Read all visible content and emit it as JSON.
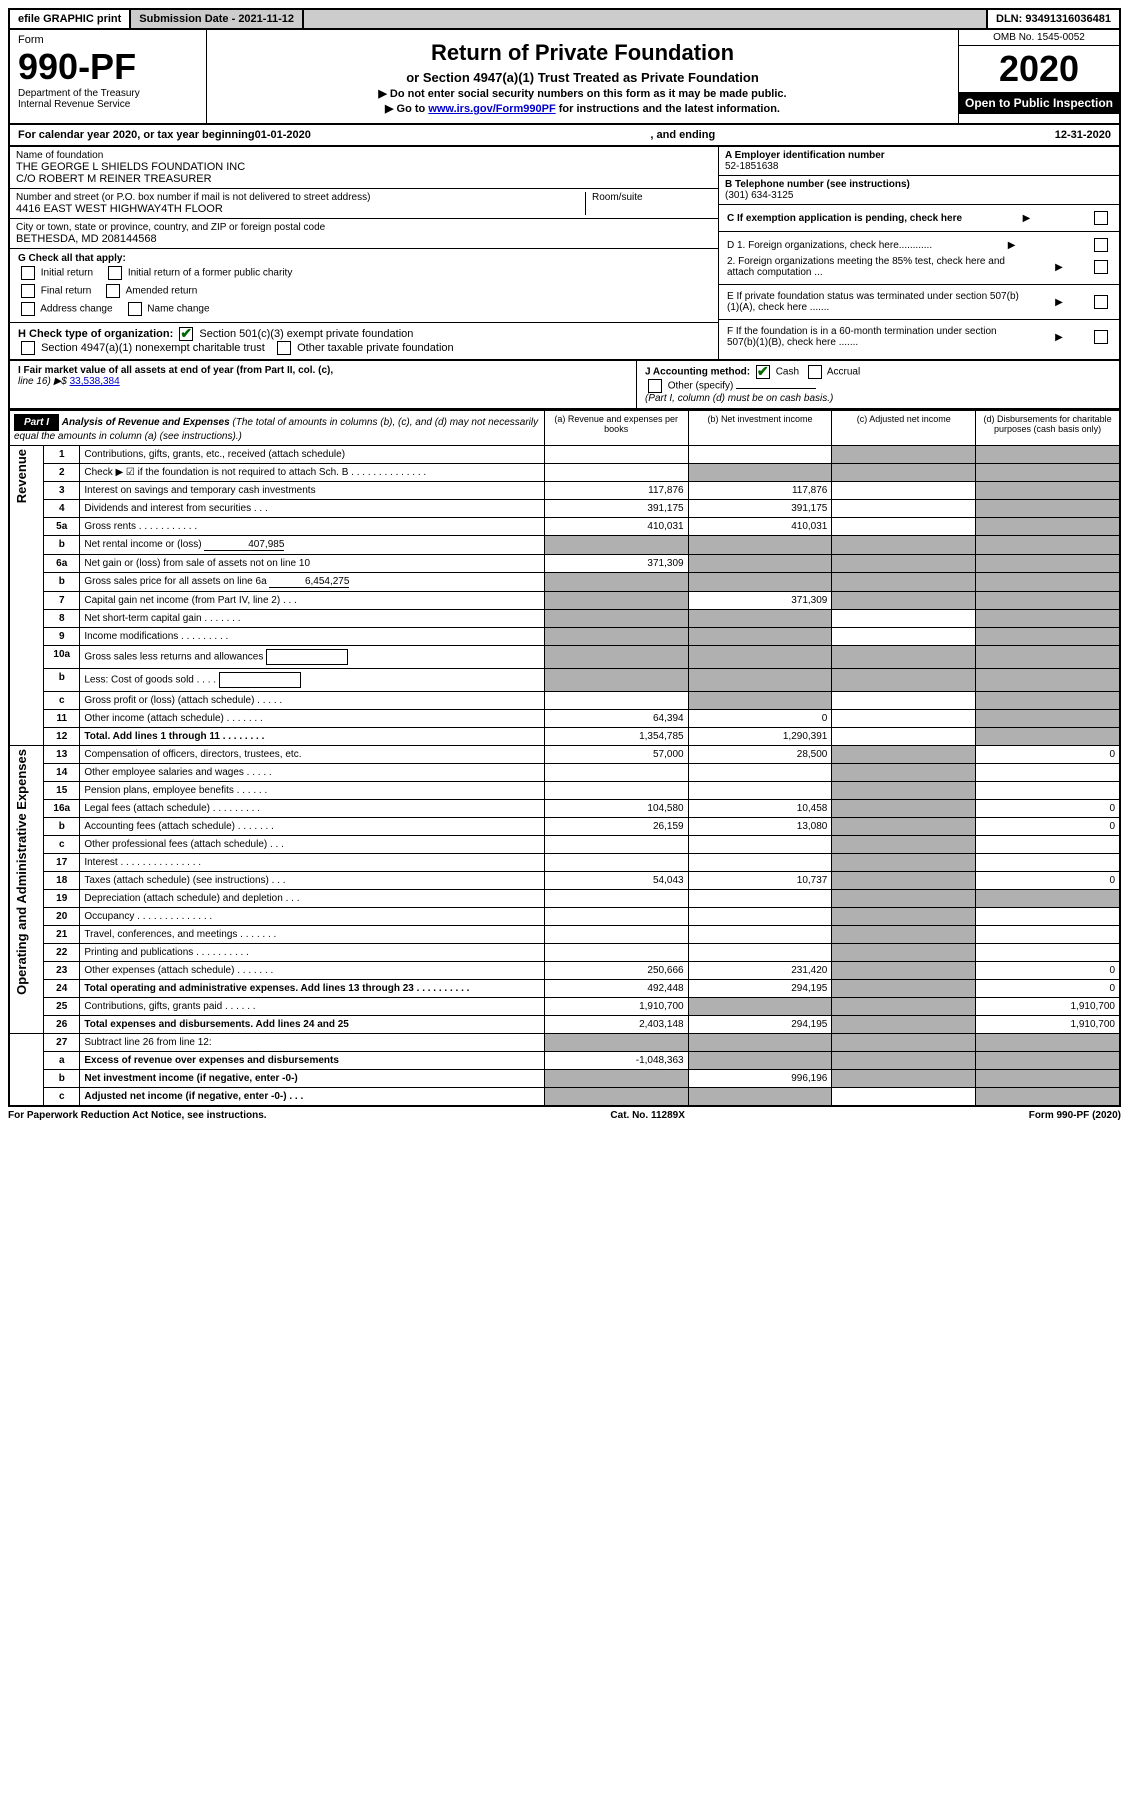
{
  "top_bar": {
    "efile": "efile GRAPHIC print",
    "submission": "Submission Date - 2021-11-12",
    "dln": "DLN: 93491316036481"
  },
  "header": {
    "form_label": "Form",
    "form_number": "990-PF",
    "dept": "Department of the Treasury",
    "irs": "Internal Revenue Service",
    "title": "Return of Private Foundation",
    "subtitle": "or Section 4947(a)(1) Trust Treated as Private Foundation",
    "note1": "▶ Do not enter social security numbers on this form as it may be made public.",
    "note2_prefix": "▶ Go to ",
    "note2_link": "www.irs.gov/Form990PF",
    "note2_suffix": " for instructions and the latest information.",
    "omb": "OMB No. 1545-0052",
    "year": "2020",
    "open": "Open to Public Inspection"
  },
  "calendar": {
    "prefix": "For calendar year 2020, or tax year beginning ",
    "begin": "01-01-2020",
    "mid": " , and ending ",
    "end": "12-31-2020"
  },
  "entity": {
    "name_label": "Name of foundation",
    "name1": "THE GEORGE L SHIELDS FOUNDATION INC",
    "name2": "C/O ROBERT M REINER TREASURER",
    "addr_label": "Number and street (or P.O. box number if mail is not delivered to street address)",
    "addr": "4416 EAST WEST HIGHWAY4TH FLOOR",
    "room_label": "Room/suite",
    "city_label": "City or town, state or province, country, and ZIP or foreign postal code",
    "city": "BETHESDA, MD  208144568",
    "ein_label": "A Employer identification number",
    "ein": "52-1851638",
    "phone_label": "B Telephone number (see instructions)",
    "phone": "(301) 634-3125",
    "c_label": "C If exemption application is pending, check here",
    "d1_label": "D 1. Foreign organizations, check here............",
    "d2_label": "2. Foreign organizations meeting the 85% test, check here and attach computation ...",
    "e_label": "E If private foundation status was terminated under section 507(b)(1)(A), check here .......",
    "f_label": "F If the foundation is in a 60-month termination under section 507(b)(1)(B), check here .......",
    "g_label": "G Check all that apply:",
    "g_opts": [
      "Initial return",
      "Initial return of a former public charity",
      "Final return",
      "Amended return",
      "Address change",
      "Name change"
    ],
    "h_label": "H Check type of organization:",
    "h_opt1": "Section 501(c)(3) exempt private foundation",
    "h_opt2": "Section 4947(a)(1) nonexempt charitable trust",
    "h_opt3": "Other taxable private foundation",
    "i_label": "I Fair market value of all assets at end of year (from Part II, col. (c),",
    "i_line": "line 16) ▶$",
    "i_value": "33,538,384",
    "j_label": "J Accounting method:",
    "j_cash": "Cash",
    "j_accrual": "Accrual",
    "j_other": "Other (specify)",
    "j_note": "(Part I, column (d) must be on cash basis.)"
  },
  "part1": {
    "label": "Part I",
    "title": "Analysis of Revenue and Expenses",
    "title_note": "(The total of amounts in columns (b), (c), and (d) may not necessarily equal the amounts in column (a) (see instructions).)",
    "col_a": "(a) Revenue and expenses per books",
    "col_b": "(b) Net investment income",
    "col_c": "(c) Adjusted net income",
    "col_d": "(d) Disbursements for charitable purposes (cash basis only)",
    "revenue_label": "Revenue",
    "expenses_label": "Operating and Administrative Expenses"
  },
  "rows": [
    {
      "n": "1",
      "d": "Contributions, gifts, grants, etc., received (attach schedule)",
      "a": "",
      "b": "",
      "c": "s",
      "dcol": "s"
    },
    {
      "n": "2",
      "d": "Check ▶ ☑ if the foundation is not required to attach Sch. B       .   .   .   .   .   .   .   .   .   .   .   .   .   .",
      "a": "",
      "b": "s",
      "c": "s",
      "dcol": "s"
    },
    {
      "n": "3",
      "d": "Interest on savings and temporary cash investments",
      "a": "117,876",
      "b": "117,876",
      "c": "",
      "dcol": "s"
    },
    {
      "n": "4",
      "d": "Dividends and interest from securities     .   .   .",
      "a": "391,175",
      "b": "391,175",
      "c": "",
      "dcol": "s"
    },
    {
      "n": "5a",
      "d": "Gross rents       .   .   .   .   .   .   .   .   .   .   .",
      "a": "410,031",
      "b": "410,031",
      "c": "",
      "dcol": "s"
    },
    {
      "n": "b",
      "d": "Net rental income or (loss)",
      "inline": "407,985",
      "a": "s",
      "b": "s",
      "c": "s",
      "dcol": "s"
    },
    {
      "n": "6a",
      "d": "Net gain or (loss) from sale of assets not on line 10",
      "a": "371,309",
      "b": "s",
      "c": "s",
      "dcol": "s"
    },
    {
      "n": "b",
      "d": "Gross sales price for all assets on line 6a",
      "inline": "6,454,275",
      "a": "s",
      "b": "s",
      "c": "s",
      "dcol": "s"
    },
    {
      "n": "7",
      "d": "Capital gain net income (from Part IV, line 2)   .   .   .",
      "a": "s",
      "b": "371,309",
      "c": "s",
      "dcol": "s"
    },
    {
      "n": "8",
      "d": "Net short-term capital gain   .   .   .   .   .   .   .",
      "a": "s",
      "b": "s",
      "c": "",
      "dcol": "s"
    },
    {
      "n": "9",
      "d": "Income modifications   .   .   .   .   .   .   .   .   .",
      "a": "s",
      "b": "s",
      "c": "",
      "dcol": "s"
    },
    {
      "n": "10a",
      "d": "Gross sales less returns and allowances",
      "box": true,
      "a": "s",
      "b": "s",
      "c": "s",
      "dcol": "s"
    },
    {
      "n": "b",
      "d": "Less: Cost of goods sold     .   .   .   .",
      "box": true,
      "a": "s",
      "b": "s",
      "c": "s",
      "dcol": "s"
    },
    {
      "n": "c",
      "d": "Gross profit or (loss) (attach schedule)     .   .   .   .   .",
      "a": "",
      "b": "s",
      "c": "",
      "dcol": "s"
    },
    {
      "n": "11",
      "d": "Other income (attach schedule)    .   .   .   .   .   .   .",
      "a": "64,394",
      "b": "0",
      "c": "",
      "dcol": "s"
    },
    {
      "n": "12",
      "d": "Total. Add lines 1 through 11   .   .   .   .   .   .   .   .",
      "bold": true,
      "a": "1,354,785",
      "b": "1,290,391",
      "c": "",
      "dcol": "s"
    }
  ],
  "exp_rows": [
    {
      "n": "13",
      "d": "Compensation of officers, directors, trustees, etc.",
      "a": "57,000",
      "b": "28,500",
      "c": "s",
      "dcol": "0"
    },
    {
      "n": "14",
      "d": "Other employee salaries and wages   .   .   .   .   .",
      "a": "",
      "b": "",
      "c": "s",
      "dcol": ""
    },
    {
      "n": "15",
      "d": "Pension plans, employee benefits   .   .   .   .   .   .",
      "a": "",
      "b": "",
      "c": "s",
      "dcol": ""
    },
    {
      "n": "16a",
      "d": "Legal fees (attach schedule) .   .   .   .   .   .   .   .   .",
      "a": "104,580",
      "b": "10,458",
      "c": "s",
      "dcol": "0"
    },
    {
      "n": "b",
      "d": "Accounting fees (attach schedule) .   .   .   .   .   .   .",
      "a": "26,159",
      "b": "13,080",
      "c": "s",
      "dcol": "0"
    },
    {
      "n": "c",
      "d": "Other professional fees (attach schedule)    .   .   .",
      "a": "",
      "b": "",
      "c": "s",
      "dcol": ""
    },
    {
      "n": "17",
      "d": "Interest .   .   .   .   .   .   .   .   .   .   .   .   .   .   .",
      "a": "",
      "b": "",
      "c": "s",
      "dcol": ""
    },
    {
      "n": "18",
      "d": "Taxes (attach schedule) (see instructions)     .   .   .",
      "a": "54,043",
      "b": "10,737",
      "c": "s",
      "dcol": "0"
    },
    {
      "n": "19",
      "d": "Depreciation (attach schedule) and depletion    .   .   .",
      "a": "",
      "b": "",
      "c": "s",
      "dcol": "s"
    },
    {
      "n": "20",
      "d": "Occupancy .   .   .   .   .   .   .   .   .   .   .   .   .   .",
      "a": "",
      "b": "",
      "c": "s",
      "dcol": ""
    },
    {
      "n": "21",
      "d": "Travel, conferences, and meetings .   .   .   .   .   .   .",
      "a": "",
      "b": "",
      "c": "s",
      "dcol": ""
    },
    {
      "n": "22",
      "d": "Printing and publications .   .   .   .   .   .   .   .   .   .",
      "a": "",
      "b": "",
      "c": "s",
      "dcol": ""
    },
    {
      "n": "23",
      "d": "Other expenses (attach schedule) .   .   .   .   .   .   .",
      "a": "250,666",
      "b": "231,420",
      "c": "s",
      "dcol": "0"
    },
    {
      "n": "24",
      "d": "Total operating and administrative expenses. Add lines 13 through 23   .   .   .   .   .   .   .   .   .   .",
      "bold": true,
      "a": "492,448",
      "b": "294,195",
      "c": "s",
      "dcol": "0"
    },
    {
      "n": "25",
      "d": "Contributions, gifts, grants paid     .   .   .   .   .   .",
      "a": "1,910,700",
      "b": "s",
      "c": "s",
      "dcol": "1,910,700"
    },
    {
      "n": "26",
      "d": "Total expenses and disbursements. Add lines 24 and 25",
      "bold": true,
      "a": "2,403,148",
      "b": "294,195",
      "c": "s",
      "dcol": "1,910,700"
    }
  ],
  "bottom_rows": [
    {
      "n": "27",
      "d": "Subtract line 26 from line 12:",
      "a": "s",
      "b": "s",
      "c": "s",
      "dcol": "s"
    },
    {
      "n": "a",
      "d": "Excess of revenue over expenses and disbursements",
      "bold": true,
      "a": "-1,048,363",
      "b": "s",
      "c": "s",
      "dcol": "s"
    },
    {
      "n": "b",
      "d": "Net investment income (if negative, enter -0-)",
      "bold": true,
      "a": "s",
      "b": "996,196",
      "c": "s",
      "dcol": "s"
    },
    {
      "n": "c",
      "d": "Adjusted net income (if negative, enter -0-)   .   .   .",
      "bold": true,
      "a": "s",
      "b": "s",
      "c": "",
      "dcol": "s"
    }
  ],
  "footer": {
    "left": "For Paperwork Reduction Act Notice, see instructions.",
    "mid": "Cat. No. 11289X",
    "right": "Form 990-PF (2020)"
  }
}
